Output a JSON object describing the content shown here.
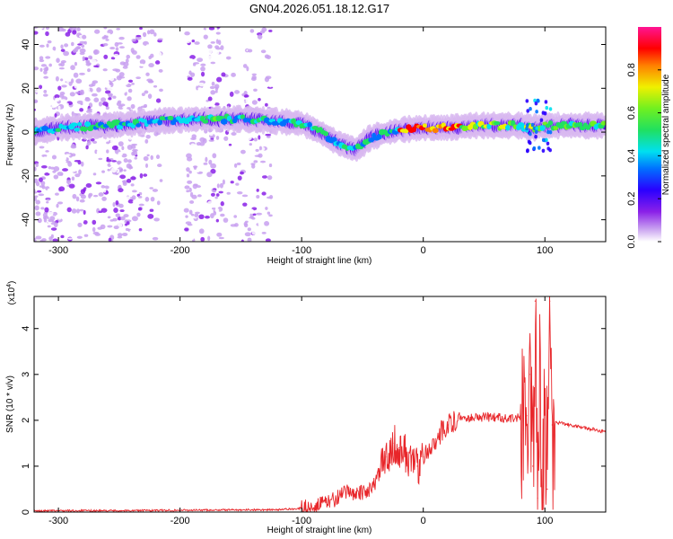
{
  "title": "GN04.2026.051.18.12.G17",
  "colors": {
    "snr_line": "#e8262a",
    "colormap": [
      "#ffffff",
      "#d8b8f0",
      "#b070e8",
      "#7a18e0",
      "#2a00ff",
      "#0070ff",
      "#00e0f0",
      "#20e060",
      "#60f020",
      "#f0f000",
      "#ff8000",
      "#ff0000",
      "#ff1493"
    ]
  },
  "chart_data": [
    {
      "type": "heatmap",
      "xlabel": "Height of straight line (km)",
      "ylabel": "Frequency (Hz)",
      "xlim": [
        -320,
        150
      ],
      "ylim": [
        -50,
        48
      ],
      "xticks": [
        -300,
        -200,
        -100,
        0,
        100
      ],
      "yticks": [
        -40,
        -20,
        0,
        20,
        40
      ],
      "colorbar": {
        "label": "Normalized spectral amplitude",
        "range": [
          0,
          1
        ],
        "ticks": [
          "0.0",
          "0.2",
          "0.4",
          "0.6",
          "0.8"
        ]
      },
      "ridge": {
        "x": [
          -320,
          -300,
          -260,
          -220,
          -180,
          -150,
          -120,
          -100,
          -85,
          -70,
          -55,
          -45,
          -35,
          -20,
          0,
          20,
          40,
          60,
          80,
          90,
          100,
          150
        ],
        "y": [
          0,
          2,
          3,
          5,
          6,
          6,
          5,
          4,
          0,
          -5,
          -8,
          -3,
          -1,
          1,
          2,
          2,
          3,
          3,
          3,
          2,
          3,
          3
        ]
      }
    },
    {
      "type": "line",
      "xlabel": "Height of straight line (km)",
      "ylabel": "SNR (10 * v/v)",
      "y_multiplier": "(x10",
      "y_multiplier_exp": "4",
      "y_multiplier_close": ")",
      "xlim": [
        -320,
        150
      ],
      "ylim": [
        0,
        4.7
      ],
      "xticks": [
        -300,
        -200,
        -100,
        0,
        100
      ],
      "yticks": [
        0,
        1,
        2,
        3,
        4
      ],
      "series": [
        {
          "x": [
            -320,
            -300,
            -250,
            -200,
            -150,
            -120,
            -100,
            -80,
            -60,
            -50,
            -40,
            -30,
            -25,
            -20,
            -15,
            -10,
            -5,
            0,
            10,
            20,
            30,
            40,
            50,
            60,
            70,
            80,
            85,
            88,
            90,
            92,
            94,
            96,
            98,
            100,
            102,
            104,
            106,
            110,
            120,
            130,
            140,
            150
          ],
          "y": [
            0.02,
            0.03,
            0.03,
            0.04,
            0.05,
            0.05,
            0.08,
            0.2,
            0.45,
            0.4,
            0.6,
            1.2,
            1.5,
            1.4,
            1.3,
            1.1,
            1.0,
            1.2,
            1.6,
            1.9,
            2.05,
            2.07,
            2.07,
            2.06,
            2.05,
            2.05,
            2.1,
            3.0,
            1.0,
            4.6,
            0.3,
            3.5,
            0.2,
            2.5,
            0.5,
            4.6,
            1.9,
            1.95,
            1.9,
            1.85,
            1.8,
            1.75
          ]
        }
      ]
    }
  ]
}
